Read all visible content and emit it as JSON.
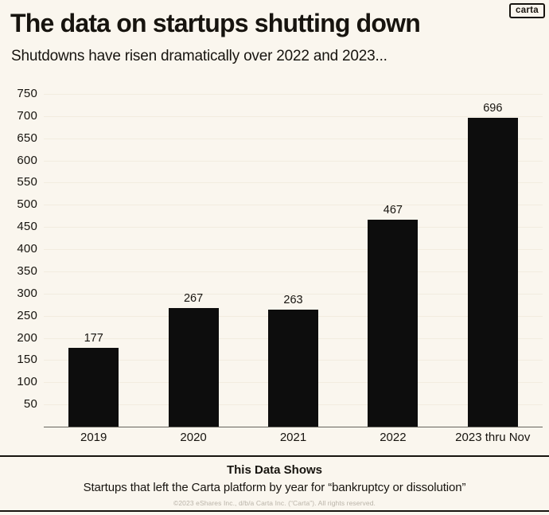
{
  "logo": {
    "label": "carta"
  },
  "header": {
    "title": "The data on startups shutting down",
    "subtitle": "Shutdowns have risen dramatically over 2022 and 2023..."
  },
  "chart_data": {
    "type": "bar",
    "categories": [
      "2019",
      "2020",
      "2021",
      "2022",
      "2023 thru Nov"
    ],
    "values": [
      177,
      267,
      263,
      467,
      696
    ],
    "title": "",
    "xlabel": "",
    "ylabel": "",
    "ylim": [
      0,
      750
    ],
    "ytick_step": 50,
    "ytick_labels": [
      "50",
      "100",
      "150",
      "200",
      "250",
      "300",
      "350",
      "400",
      "450",
      "500",
      "550",
      "600",
      "650",
      "700",
      "750"
    ],
    "grid": true,
    "legend": "none",
    "bar_color": "#0d0d0d"
  },
  "footer": {
    "heading": "This Data Shows",
    "description": "Startups that left the Carta platform by year for “bankruptcy or dissolution”",
    "copyright": "©2023 eShares Inc., d/b/a Carta Inc. (“Carta”). All rights reserved."
  },
  "colors": {
    "background": "#faf6ee",
    "bar": "#0d0d0d",
    "text": "#17140f",
    "gridline": "#f2ecdf",
    "axis_line": "#66635d",
    "copyright_text": "#b9b3a8"
  }
}
